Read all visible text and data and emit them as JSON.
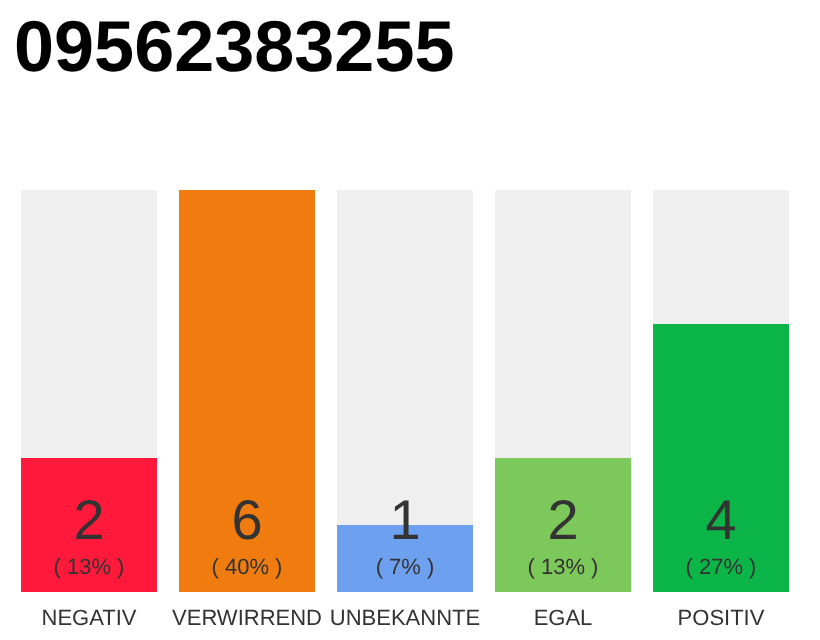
{
  "chart_data": {
    "type": "bar",
    "title": "09562383255",
    "categories": [
      "NEGATIV",
      "VERWIRREND",
      "UNBEKANNTE",
      "EGAL",
      "POSITIV"
    ],
    "values": [
      2,
      6,
      1,
      2,
      4
    ],
    "value_labels": [
      "2\n( 13% )",
      "6\n( 40% )",
      "1\n( 7% )",
      "2\n( 13% )",
      "4\n( 27% )"
    ],
    "colors": [
      "#ff1a3c",
      "#f07c0f",
      "#6ea0f0",
      "#7dc85a",
      "#0bb548"
    ]
  }
}
